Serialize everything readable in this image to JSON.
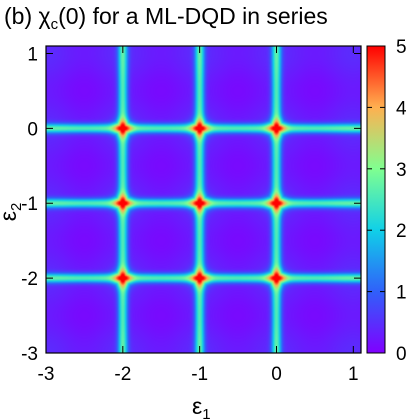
{
  "chart_data": {
    "type": "heatmap",
    "title": {
      "prefix": "(b) ",
      "symbol": "χ",
      "subscript": "c",
      "suffix": "(0) for a ML-DQD in series"
    },
    "xlabel": {
      "symbol": "ε",
      "subscript": "1"
    },
    "ylabel": {
      "symbol": "ε",
      "subscript": "2"
    },
    "xlim": [
      -3,
      1.1
    ],
    "ylim": [
      -3,
      1.1
    ],
    "x_ticks": [
      -3,
      -2,
      -1,
      0,
      1
    ],
    "y_ticks": [
      -3,
      -2,
      -1,
      0,
      1
    ],
    "x_tick_labels": [
      "-3",
      "-2",
      "-1",
      "0",
      "1"
    ],
    "y_tick_labels": [
      "-3",
      "-2",
      "-1",
      "0",
      "1"
    ],
    "colorbar": {
      "min": 0,
      "max": 5,
      "ticks": [
        0,
        1,
        2,
        3,
        4,
        5
      ],
      "tick_labels": [
        "0",
        "1",
        "2",
        "3",
        "4",
        "5"
      ],
      "colormap": "rainbow"
    },
    "resonance_lines_x": [
      -2,
      -1,
      0
    ],
    "resonance_lines_y": [
      -2,
      -1,
      0
    ],
    "peak_points": [
      {
        "x": -2,
        "y": -2,
        "value": 5
      },
      {
        "x": -2,
        "y": -1,
        "value": 5
      },
      {
        "x": -2,
        "y": 0,
        "value": 5
      },
      {
        "x": -1,
        "y": -2,
        "value": 5
      },
      {
        "x": -1,
        "y": -1,
        "value": 5
      },
      {
        "x": -1,
        "y": 0,
        "value": 5
      },
      {
        "x": 0,
        "y": -2,
        "value": 5
      },
      {
        "x": 0,
        "y": -1,
        "value": 5
      },
      {
        "x": 0,
        "y": 0,
        "value": 5
      }
    ],
    "line_peak_value": 2.3,
    "background_value": 0.1,
    "grid": false,
    "legend": "none"
  }
}
